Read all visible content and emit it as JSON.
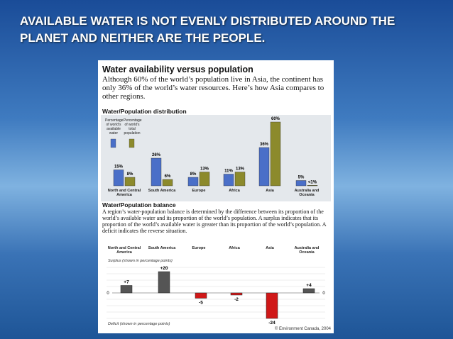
{
  "slide_title": "AVAILABLE WATER IS NOT EVENLY DISTRIBUTED AROUND THE PLANET AND NEITHER ARE THE PEOPLE.",
  "infographic": {
    "title": "Water availability versus population",
    "intro": "Although 60% of the world’s population live in Asia, the continent has only 36% of the world’s water resources. Here’s how Asia compares to other regions.",
    "credit": "© Environment Canada, 2004"
  },
  "chart_data": [
    {
      "type": "bar",
      "title": "Water/Population distribution",
      "categories": [
        "North and Central America",
        "South America",
        "Europe",
        "Africa",
        "Asia",
        "Australia and Oceania"
      ],
      "series": [
        {
          "name": "Percentage of world’s available water",
          "color": "#4a6fc8",
          "values": [
            15,
            26,
            8,
            11,
            36,
            5
          ],
          "value_labels": [
            "15%",
            "26%",
            "8%",
            "11%",
            "36%",
            "5%"
          ]
        },
        {
          "name": "Percentage of world’s total population",
          "color": "#8c8a2c",
          "values": [
            8,
            6,
            13,
            13,
            60,
            0.5
          ],
          "value_labels": [
            "8%",
            "6%",
            "13%",
            "13%",
            "60%",
            "<1%"
          ]
        }
      ]
    },
    {
      "type": "bar",
      "title": "Water/Population balance",
      "subtitle": "A region’s water-population balance is determined by the difference between its proportion of the world’s available water and its proportion of the world’s population. A surplus indicates that its proportion of the world’s available water is greater than its proportion of the world’s population. A deficit indicates the reverse situation.",
      "categories": [
        "North and Central America",
        "South America",
        "Europe",
        "Africa",
        "Asia",
        "Australia and Oceania"
      ],
      "values": [
        7,
        20,
        -5,
        -2,
        -24,
        4
      ],
      "value_labels": [
        "+7",
        "+20",
        "-5",
        "-2",
        "-24",
        "+4"
      ],
      "yticks": [
        0
      ],
      "surplus_label": "Surplus (shown in percentage points)",
      "deficit_label": "Deficit (shown in percentage points)",
      "positive_color": "#555555",
      "negative_color": "#d01818"
    }
  ]
}
